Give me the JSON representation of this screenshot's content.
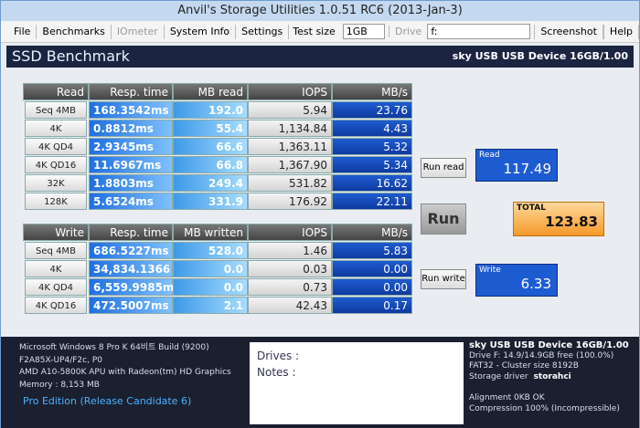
{
  "window": {
    "title": "Anvil's Storage Utilities 1.0.51 RC6 (2013-Jan-3)"
  },
  "menu": {
    "items": [
      "File",
      "Benchmarks",
      "IOmeter",
      "System Info",
      "Settings"
    ],
    "test_size_label": "Test size",
    "test_size": "1GB",
    "drive_label": "Drive",
    "drive": "f:",
    "tail_items": [
      "Screenshot",
      "Help"
    ]
  },
  "header": {
    "title": "SSD Benchmark",
    "device": "sky USB USB Device 16GB/1.00"
  },
  "read_table": {
    "columns": [
      "Read",
      "Resp. time",
      "MB read",
      "IOPS",
      "MB/s"
    ],
    "rows": [
      [
        "Seq 4MB",
        "168.3542ms",
        "192.0",
        "5.94",
        "23.76"
      ],
      [
        "4K",
        "0.8812ms",
        "55.4",
        "1,134.84",
        "4.43"
      ],
      [
        "4K QD4",
        "2.9345ms",
        "66.6",
        "1,363.11",
        "5.32"
      ],
      [
        "4K QD16",
        "11.6967ms",
        "66.8",
        "1,367.90",
        "5.34"
      ],
      [
        "32K",
        "1.8803ms",
        "249.4",
        "531.82",
        "16.62"
      ],
      [
        "128K",
        "5.6524ms",
        "331.9",
        "176.92",
        "22.11"
      ]
    ]
  },
  "write_table": {
    "columns": [
      "Write",
      "Resp. time",
      "MB written",
      "IOPS",
      "MB/s"
    ],
    "rows": [
      [
        "Seq 4MB",
        "686.5227ms",
        "528.0",
        "1.46",
        "5.83"
      ],
      [
        "4K",
        "34,834.1366",
        "0.0",
        "0.03",
        "0.00"
      ],
      [
        "4K QD4",
        "6,559.9985m",
        "0.0",
        "0.73",
        "0.00"
      ],
      [
        "4K QD16",
        "472.5007ms",
        "2.1",
        "42.43",
        "0.17"
      ]
    ]
  },
  "buttons": {
    "run_read": "Run read",
    "run": "Run",
    "run_write": "Run write"
  },
  "results": {
    "read_label": "Read",
    "read": "117.49",
    "total_label": "TOTAL",
    "total": "123.83",
    "write_label": "Write",
    "write": "6.33"
  },
  "system": {
    "lines": [
      "Microsoft Windows 8 Pro K 64비트 Build (9200)",
      "F2A85X-UP4/F2c, P0",
      "AMD A10-5800K APU with Radeon(tm) HD Graphics",
      "Memory : 8,153 MB"
    ],
    "edition": "Pro Edition (Release Candidate 6)"
  },
  "notes": {
    "drives": "Drives :",
    "notes": "Notes :"
  },
  "drive_info": {
    "device": "sky USB USB Device 16GB/1.00",
    "lines": [
      "Drive F: 14.9/14.9GB free (100.0%)",
      "FAT32 - Cluster size 8192B"
    ],
    "driver_label": "Storage driver",
    "driver": "storahci",
    "alignment": "Alignment 0KB OK",
    "compression": "Compression 100% (Incompressible)"
  }
}
